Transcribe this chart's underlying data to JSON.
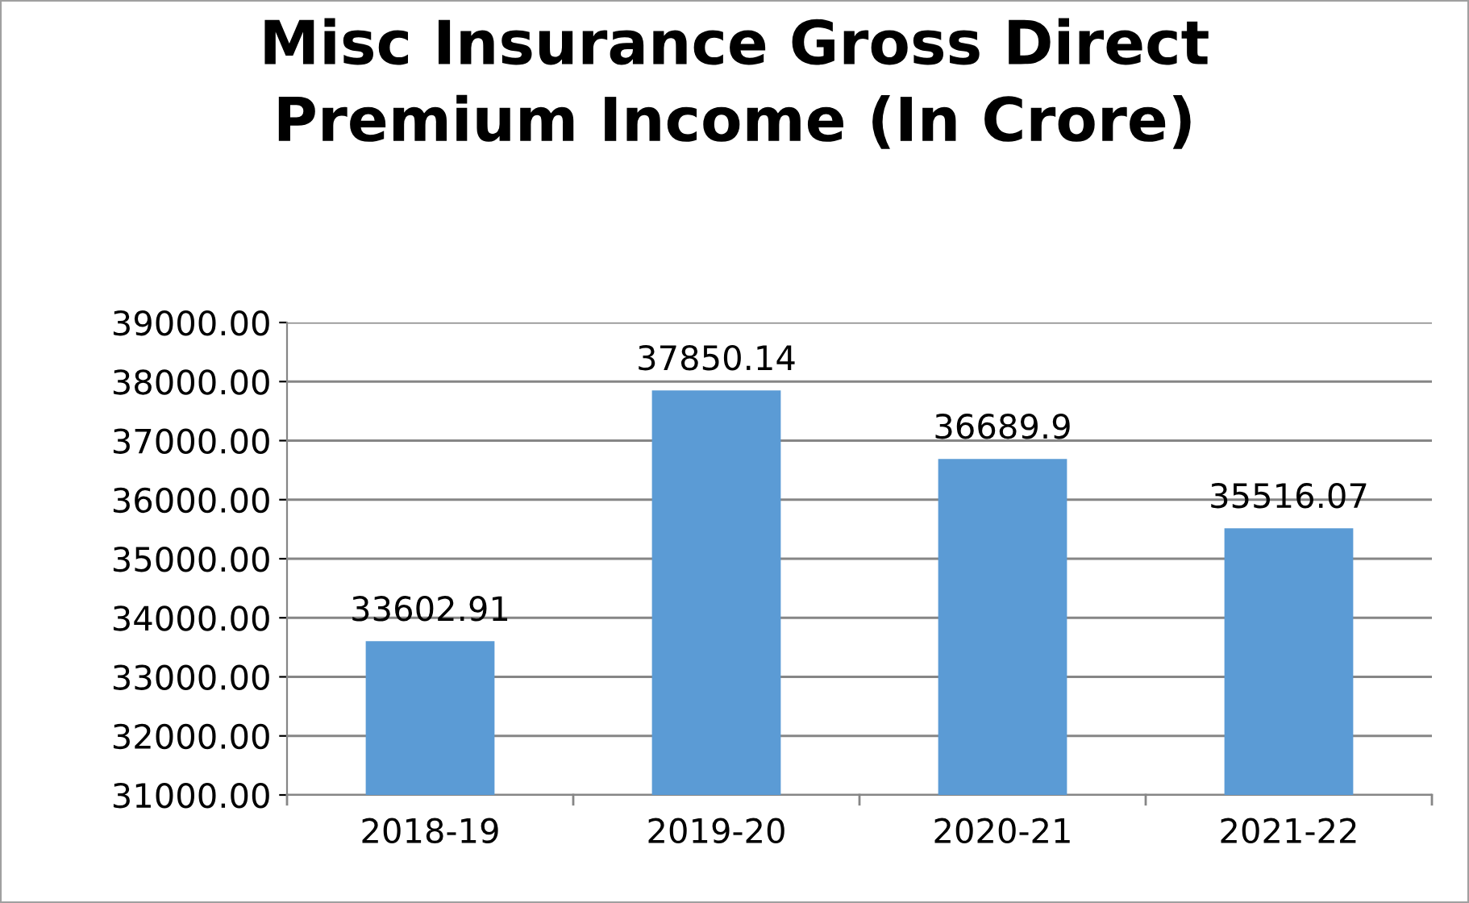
{
  "chart_data": {
    "type": "bar",
    "title": "Misc Insurance Gross Direct\nPremium Income (In Crore)",
    "categories": [
      "2018-19",
      "2019-20",
      "2020-21",
      "2021-22"
    ],
    "values": [
      33602.91,
      37850.14,
      36689.9,
      35516.07
    ],
    "color": "#5b9bd5",
    "ylim": [
      31000,
      39000
    ],
    "yticks": [
      {
        "value": 31000,
        "label": "31000.00"
      },
      {
        "value": 32000,
        "label": "32000.00"
      },
      {
        "value": 33000,
        "label": "33000.00"
      },
      {
        "value": 34000,
        "label": "34000.00"
      },
      {
        "value": 35000,
        "label": "35000.00"
      },
      {
        "value": 36000,
        "label": "36000.00"
      },
      {
        "value": 37000,
        "label": "37000.00"
      },
      {
        "value": 38000,
        "label": "38000.00"
      },
      {
        "value": 39000,
        "label": "39000.00"
      }
    ],
    "grid": "y",
    "data_labels": true,
    "legend": false
  }
}
